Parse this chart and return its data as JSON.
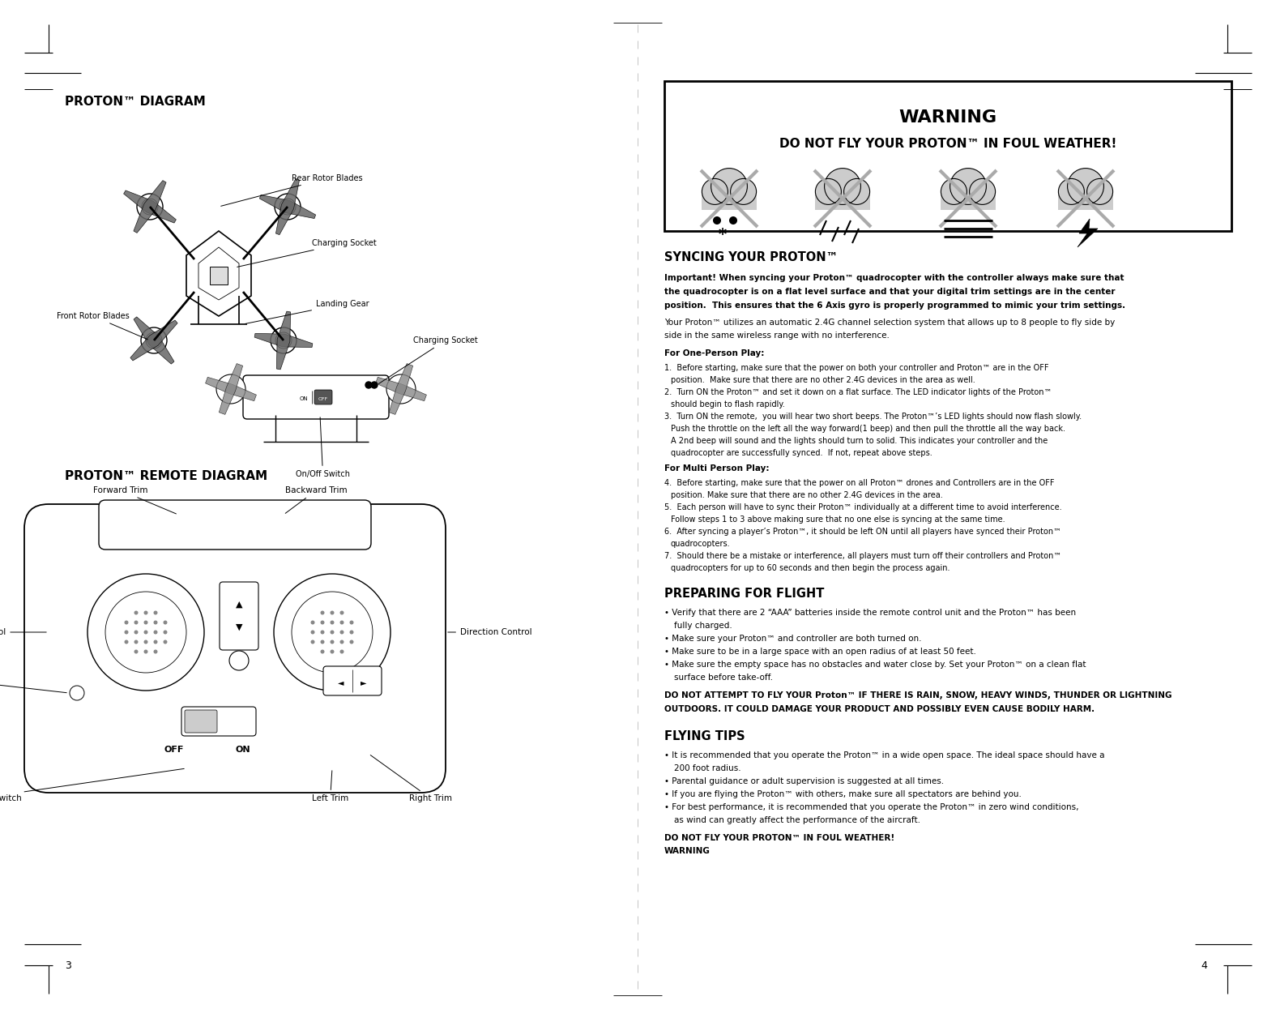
{
  "bg_color": "#ffffff",
  "page_width": 15.75,
  "page_height": 12.56,
  "left_title": "PROTON™ DIAGRAM",
  "remote_title": "PROTON™ REMOTE DIAGRAM",
  "warning_title": "WARNING",
  "warning_subtitle": "DO NOT FLY YOUR PROTON™ IN FOUL WEATHER!",
  "syncing_title": "SYNCING YOUR PROTON™",
  "syncing_bold": "Important! When syncing your Proton™ quadrocopter with the controller always make sure that\nthe quadrocopter is on a flat level surface and that your digital trim settings are in the center\nposition.  This ensures that the 6 Axis gyro is properly programmed to mimic your trim settings.",
  "syncing_normal": "Your Proton™ utilizes an automatic 2.4G channel selection system that allows up to 8 people to fly side by\nside in the same wireless range with no interference.",
  "for_one_person": "For One-Person Play:",
  "one_person_steps": [
    "Before starting, make sure that the power on both your controller and Proton™ are in the OFF\n    position.  Make sure that there are no other 2.4G devices in the area as well.",
    "Turn ON the Proton™ and set it down on a flat surface. The LED indicator lights of the Proton™\n    should begin to flash rapidly.",
    "Turn ON the remote,  you will hear two short beeps. The Proton™’s LED lights should now flash slowly.\n    Push the throttle on the left all the way forward(1 beep) and then pull the throttle all the way back.\n     A 2nd beep will sound and the lights should turn to solid. This indicates your controller and the\n     quadrocopter are successfully synced.  If not, repeat above steps."
  ],
  "for_multi_person": "For Multi Person Play:",
  "multi_person_steps": [
    "Before starting, make sure that the power on all Proton™ drones and Controllers are in the OFF\n    position. Make sure that there are no other 2.4G devices in the area.",
    "Each person will have to sync their Proton™ individually at a different time to avoid interference.\n    Follow steps 1 to 3 above making sure that no one else is syncing at the same time.",
    "After syncing a player’s Proton™, it should be left ON until all players have synced their Proton™\n    quadrocopters.",
    "Should there be a mistake or interference, all players must turn off their controllers and Proton™\n    quadrocopters for up to 60 seconds and then begin the process again."
  ],
  "preparing_title": "PREPARING FOR FLIGHT",
  "preparing_bullets": [
    "Verify that there are 2 “AAA” batteries inside the remote control unit and the Proton™ has been\n   fully charged.",
    "Make sure your Proton™ and controller are both turned on.",
    "Make sure to be in a large space with an open radius of at least 50 feet.",
    "Make sure the empty space has no obstacles and water close by. Set your Proton™ on a clean flat\n   surface before take-off."
  ],
  "preparing_warning": "DO NOT ATTEMPT TO FLY YOUR Proton™ IF THERE IS RAIN, SNOW, HEAVY WINDS, THUNDER OR LIGHTNING\nOUTDOORS. IT COULD DAMAGE YOUR PRODUCT AND POSSIBLY EVEN CAUSE BODILY HARM.",
  "flying_title": "FLYING TIPS",
  "flying_bullets": [
    "It is recommended that you operate the Proton™ in a wide open space. The ideal space should have a\n   200 foot radius.",
    "Parental guidance or adult supervision is suggested at all times.",
    "If you are flying the Proton™ with others, make sure all spectators are behind you.",
    "For best performance, it is recommended that you operate the Proton™ in zero wind conditions,\n   as wind can greatly affect the performance of the aircraft."
  ],
  "page_num_left": "3",
  "page_num_right": "4"
}
